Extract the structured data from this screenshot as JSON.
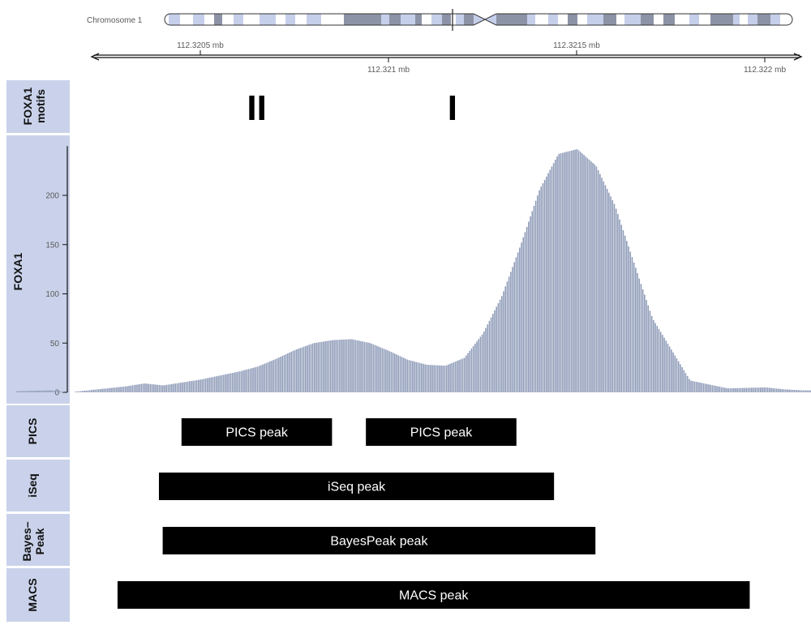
{
  "colors": {
    "panel": "#c9d2ea",
    "signal": "#8e9bb8",
    "peak_box": "#000000",
    "ideo_light": "#c6cfea",
    "ideo_dark": "#8d93a6",
    "ideo_white": "#ffffff",
    "ideo_locus": "#222222",
    "axis": "#111111"
  },
  "ideogram": {
    "label": "Chromosome 1"
  },
  "genome_axis": {
    "ticks": [
      {
        "pos": 112.3205,
        "label": "112.3205 mb",
        "side": "top"
      },
      {
        "pos": 112.321,
        "label": "112.321 mb",
        "side": "bottom"
      },
      {
        "pos": 112.3215,
        "label": "112.3215 mb",
        "side": "top"
      },
      {
        "pos": 112.322,
        "label": "112.322 mb",
        "side": "bottom"
      }
    ]
  },
  "tracks": {
    "motifs": {
      "label": "FOXA1 motifs",
      "label_lines": [
        "FOXA1",
        "motifs"
      ],
      "items": [
        {
          "label": "II",
          "pos": 112.32065
        },
        {
          "label": "I",
          "pos": 112.32117
        }
      ]
    },
    "coverage": {
      "label": "FOXA1"
    },
    "pics": {
      "label": "PICS"
    },
    "iseq": {
      "label": "iSeq"
    },
    "bayes": {
      "label": "Bayes-Peak",
      "label_lines": [
        "Bayes–",
        "Peak"
      ]
    },
    "macs": {
      "label": "MACS"
    }
  },
  "chart_data": {
    "type": "area",
    "title": "",
    "xlabel": "",
    "xunit": "mb",
    "ylabel": "FOXA1",
    "xlim": [
      112.32001,
      112.32215
    ],
    "ylim": [
      0,
      250
    ],
    "yticks": [
      0,
      50,
      100,
      150,
      200
    ],
    "series": [
      {
        "name": "FOXA1",
        "x": [
          112.32,
          112.3201,
          112.32015,
          112.3202,
          112.32025,
          112.3203,
          112.32035,
          112.3204,
          112.32045,
          112.3205,
          112.32055,
          112.3206,
          112.32065,
          112.3207,
          112.32075,
          112.3208,
          112.32085,
          112.3209,
          112.32095,
          112.321,
          112.32105,
          112.3211,
          112.32115,
          112.3212,
          112.32125,
          112.3213,
          112.32135,
          112.3214,
          112.32145,
          112.3215,
          112.32155,
          112.3216,
          112.3217,
          112.3218,
          112.3219,
          112.322,
          112.32205,
          112.3221
        ],
        "y": [
          1,
          2,
          0,
          2,
          4,
          6,
          9,
          7,
          10,
          13,
          17,
          21,
          26,
          34,
          43,
          50,
          53,
          54,
          50,
          42,
          33,
          28,
          27,
          35,
          60,
          98,
          150,
          206,
          242,
          247,
          230,
          190,
          75,
          12,
          4,
          5,
          3,
          2
        ]
      }
    ],
    "peaks": [
      {
        "caller": "PICS",
        "label": "PICS peak",
        "start": 112.32045,
        "end": 112.32085
      },
      {
        "caller": "PICS",
        "label": "PICS peak",
        "start": 112.32094,
        "end": 112.32134
      },
      {
        "caller": "iSeq",
        "label": "iSeq peak",
        "start": 112.32039,
        "end": 112.32144
      },
      {
        "caller": "BayesPeak",
        "label": "BayesPeak peak",
        "start": 112.3204,
        "end": 112.32155
      },
      {
        "caller": "MACS",
        "label": "MACS peak",
        "start": 112.32028,
        "end": 112.32196
      }
    ]
  }
}
